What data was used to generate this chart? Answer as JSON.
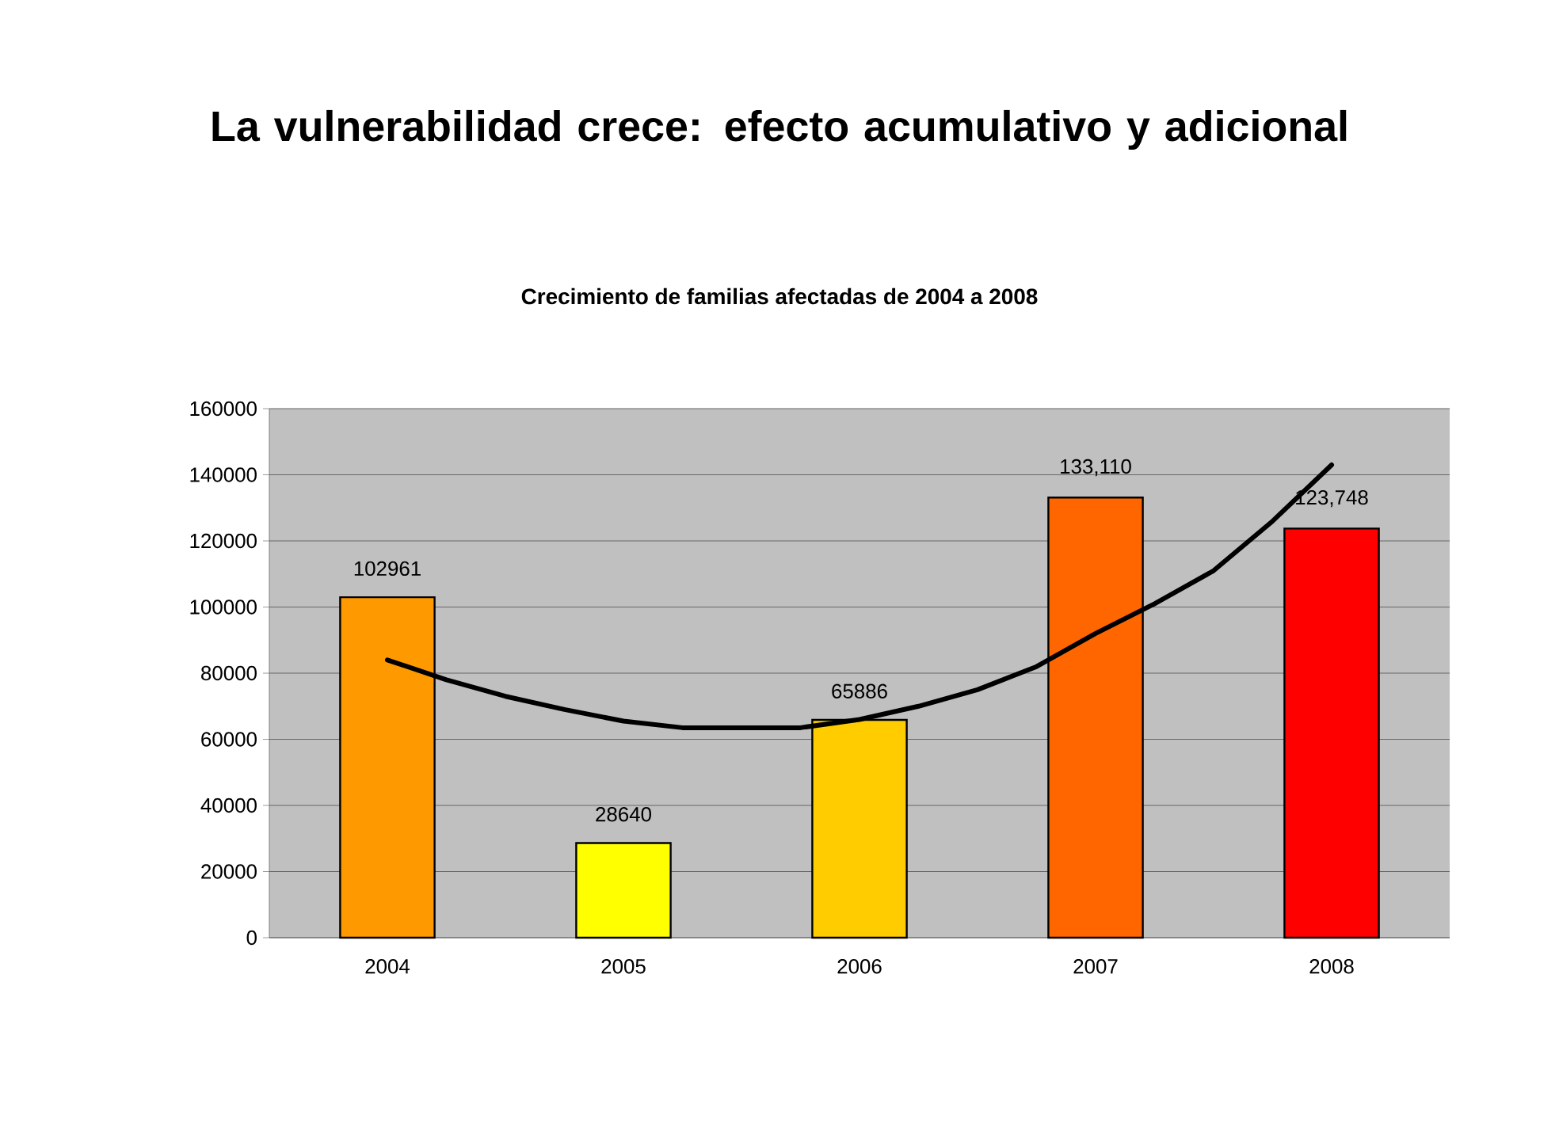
{
  "chart_data": {
    "type": "bar",
    "title": "La vulnerabilidad crece: efecto acumulativo y adicional",
    "subtitle": "Crecimiento de familias afectadas de 2004 a 2008",
    "x": [
      2004,
      2005,
      2006,
      2007,
      2008
    ],
    "series": [
      {
        "values": [
          102961,
          28640,
          65886,
          133110,
          123748
        ],
        "colors": [
          "#ff9900",
          "#ffff00",
          "#ffcc00",
          "#ff6600",
          "#ff0000"
        ],
        "value_labels": [
          "102961",
          "28640",
          "65886",
          "133,110",
          "123,748"
        ]
      },
      {
        "type": "line",
        "color": "#000000",
        "x": [
          2004,
          2004.25,
          2004.5,
          2004.75,
          2005,
          2005.25,
          2005.5,
          2005.75,
          2006,
          2006.25,
          2006.5,
          2006.75,
          2007,
          2007.25,
          2007.5,
          2007.75,
          2008
        ],
        "values": [
          84000,
          78000,
          73000,
          69000,
          65500,
          63500,
          63500,
          63500,
          66000,
          70000,
          75000,
          82000,
          92000,
          101000,
          111000,
          126000,
          143000
        ]
      }
    ],
    "xlim": [
      2003.5,
      2008.5
    ],
    "xticks": [
      2004,
      2005,
      2006,
      2007,
      2008
    ],
    "ylim": [
      0,
      160000
    ],
    "yticks": [
      0,
      20000,
      40000,
      60000,
      80000,
      100000,
      120000,
      140000,
      160000
    ],
    "grid": "y"
  }
}
